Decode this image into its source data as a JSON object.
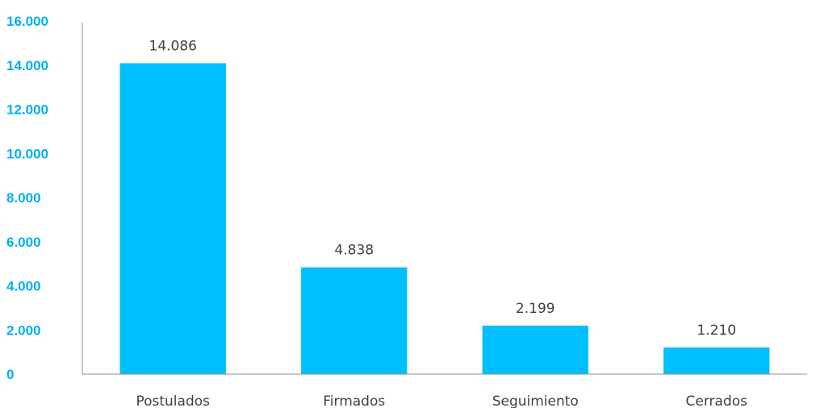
{
  "chart_data": {
    "type": "bar",
    "title": "",
    "xlabel": "",
    "ylabel": "",
    "categories": [
      "Postulados",
      "Firmados",
      "Seguimiento",
      "Cerrados"
    ],
    "values": [
      14086,
      4838,
      2199,
      1210
    ],
    "data_labels": [
      "14.086",
      "4.838",
      "2.199",
      "1.210"
    ],
    "ylim": [
      0,
      16000
    ],
    "yticks": [
      0,
      2000,
      4000,
      6000,
      8000,
      10000,
      12000,
      14000,
      16000
    ],
    "ytick_labels": [
      "0",
      "2.000",
      "4.000",
      "6.000",
      "8.000",
      "10.000",
      "12.000",
      "14.000",
      "16.000"
    ],
    "grid": false,
    "legend": "none",
    "colors": {
      "bar": "#00BFFF",
      "ytick": "#00B0F0",
      "text": "#404040",
      "axis": "#8C8C8C"
    }
  }
}
